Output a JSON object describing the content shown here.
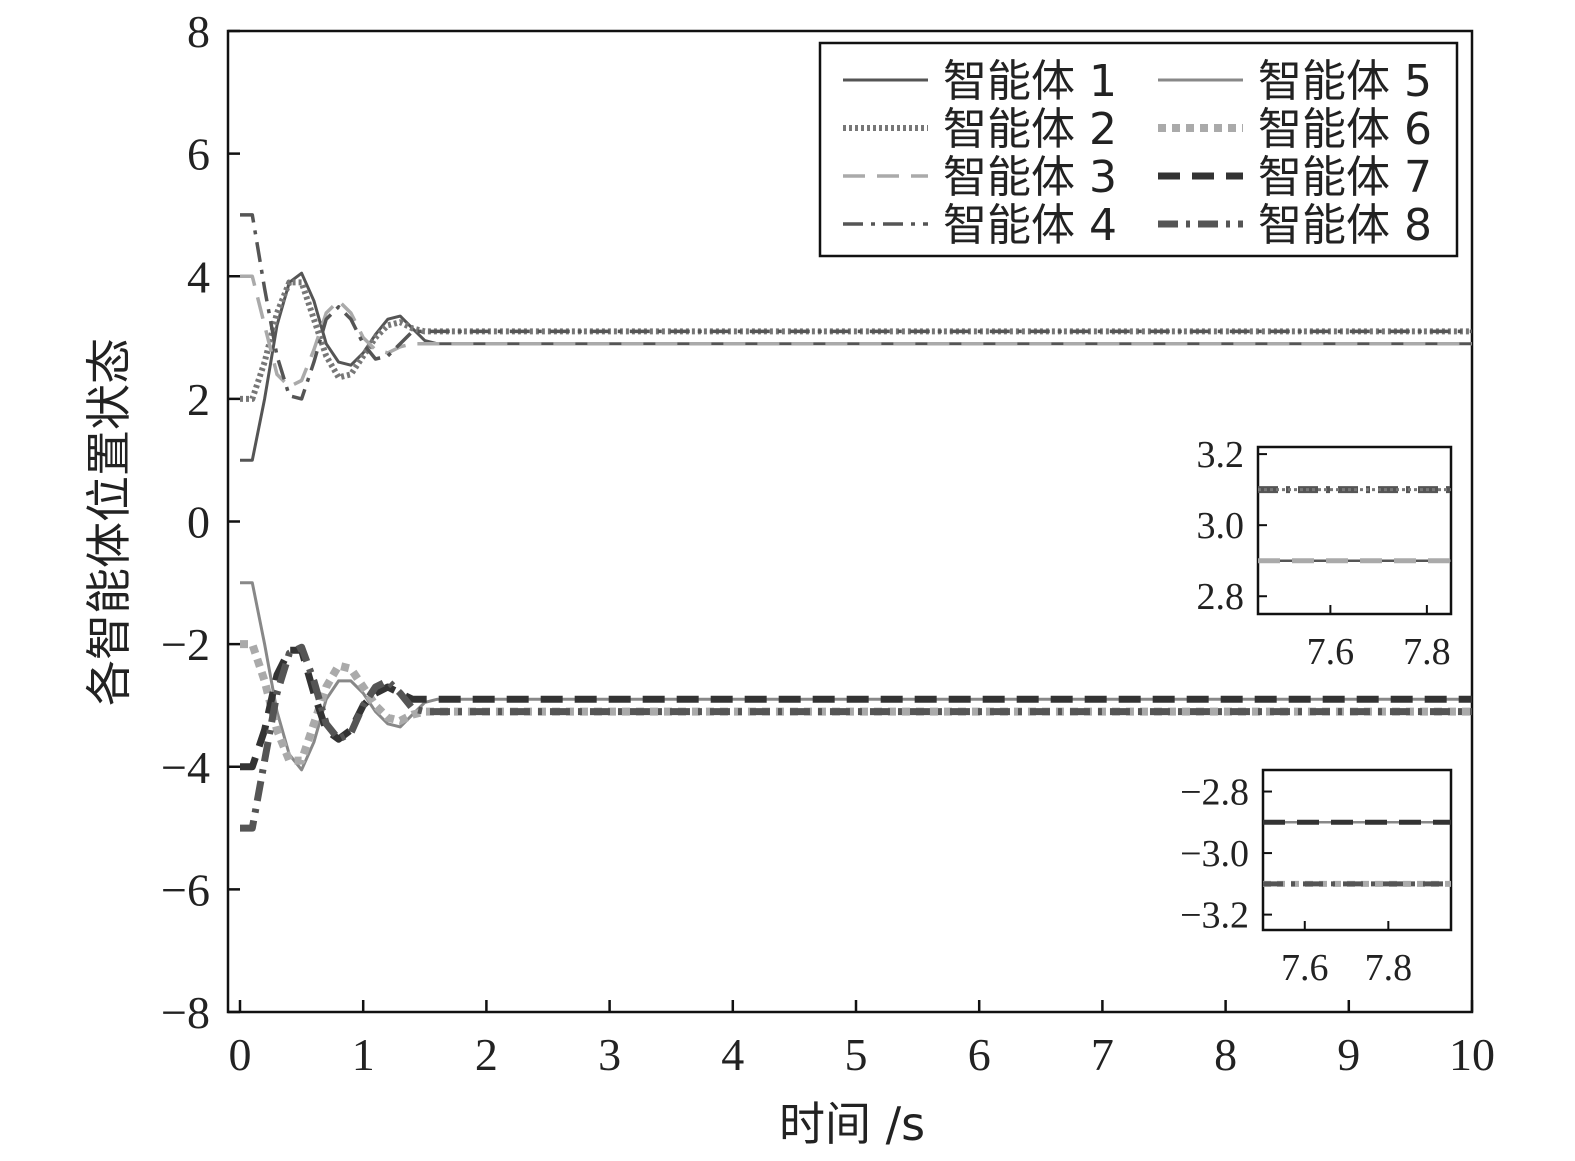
{
  "chart_data": {
    "type": "line",
    "title": "",
    "xlabel": "时间 /s",
    "ylabel": "各智能体位置状态",
    "xlim": [
      0,
      10
    ],
    "ylim": [
      -8,
      8
    ],
    "xticks": [
      "0",
      "1",
      "2",
      "3",
      "4",
      "5",
      "6",
      "7",
      "8",
      "9",
      "10"
    ],
    "yticks": [
      "−8",
      "−6",
      "−4",
      "−2",
      "0",
      "2",
      "4",
      "6",
      "8"
    ],
    "grid": false,
    "legend_position": "top-right",
    "x": [
      0,
      0.1,
      0.2,
      0.3,
      0.4,
      0.5,
      0.6,
      0.7,
      0.8,
      0.9,
      1.0,
      1.1,
      1.2,
      1.3,
      1.4,
      1.5,
      1.6,
      1.7,
      2,
      10
    ],
    "series": [
      {
        "name": "智能体 1",
        "color": "#555555",
        "dash": "",
        "width": 3,
        "values": [
          1,
          1,
          2.0,
          3.2,
          3.9,
          4.05,
          3.6,
          2.9,
          2.6,
          2.55,
          2.75,
          3.05,
          3.3,
          3.35,
          3.15,
          2.95,
          2.9,
          2.9,
          2.9,
          2.9
        ]
      },
      {
        "name": "智能体 2",
        "color": "#777777",
        "dash": "3,3",
        "width": 6,
        "values": [
          2,
          2,
          2.6,
          3.4,
          3.9,
          3.9,
          3.3,
          2.7,
          2.35,
          2.4,
          2.7,
          3.0,
          3.2,
          3.25,
          3.15,
          3.1,
          3.1,
          3.1,
          3.1,
          3.1
        ]
      },
      {
        "name": "智能体 3",
        "color": "#aaaaaa",
        "dash": "22,12",
        "width": 3.5,
        "values": [
          4,
          4,
          3.2,
          2.4,
          2.2,
          2.3,
          2.8,
          3.4,
          3.6,
          3.4,
          3.0,
          2.8,
          2.75,
          2.85,
          2.9,
          2.9,
          2.9,
          2.9,
          2.9,
          2.9
        ]
      },
      {
        "name": "智能体 4",
        "color": "#555555",
        "dash": "20,8,4,8",
        "width": 3.5,
        "values": [
          5,
          5,
          3.8,
          2.7,
          2.05,
          2.0,
          2.6,
          3.3,
          3.5,
          3.3,
          2.9,
          2.65,
          2.7,
          2.9,
          3.1,
          3.1,
          3.1,
          3.1,
          3.1,
          3.1
        ]
      },
      {
        "name": "智能体 5",
        "color": "#888888",
        "dash": "",
        "width": 3,
        "values": [
          -1,
          -1,
          -2.0,
          -3.1,
          -3.8,
          -4.05,
          -3.6,
          -2.9,
          -2.6,
          -2.6,
          -2.8,
          -3.1,
          -3.3,
          -3.35,
          -3.15,
          -2.95,
          -2.9,
          -2.9,
          -2.9,
          -2.9
        ]
      },
      {
        "name": "智能体 6",
        "color": "#aaaaaa",
        "dash": "8,6",
        "width": 8,
        "values": [
          -2,
          -2,
          -2.6,
          -3.4,
          -3.9,
          -3.9,
          -3.3,
          -2.7,
          -2.35,
          -2.4,
          -2.7,
          -3.0,
          -3.2,
          -3.25,
          -3.15,
          -3.1,
          -3.1,
          -3.1,
          -3.1,
          -3.1
        ]
      },
      {
        "name": "智能体 7",
        "color": "#333333",
        "dash": "22,12",
        "width": 7,
        "values": [
          -4,
          -4,
          -3.4,
          -2.5,
          -2.1,
          -2.1,
          -2.8,
          -3.4,
          -3.55,
          -3.4,
          -3.0,
          -2.8,
          -2.7,
          -2.8,
          -2.9,
          -2.9,
          -2.9,
          -2.9,
          -2.9,
          -2.9
        ]
      },
      {
        "name": "智能体 8",
        "color": "#555555",
        "dash": "20,8,4,8",
        "width": 7,
        "values": [
          -5,
          -5,
          -3.9,
          -2.8,
          -2.15,
          -2.05,
          -2.6,
          -3.3,
          -3.55,
          -3.45,
          -3.0,
          -2.7,
          -2.6,
          -2.8,
          -3.05,
          -3.1,
          -3.1,
          -3.1,
          -3.1,
          -3.1
        ]
      }
    ],
    "insets": [
      {
        "xlim": [
          7.45,
          7.85
        ],
        "ylim": [
          2.75,
          3.22
        ],
        "xticks": [
          "7.6",
          "7.8"
        ],
        "yticks": [
          "2.8",
          "3.0",
          "3.2"
        ],
        "upper_value": 3.1,
        "lower_value": 2.9
      },
      {
        "xlim": [
          7.5,
          7.95
        ],
        "ylim": [
          -3.25,
          -2.73
        ],
        "xticks": [
          "7.6",
          "7.8"
        ],
        "yticks": [
          "−2.8",
          "−3.0",
          "−3.2"
        ],
        "upper_value": -2.9,
        "lower_value": -3.1
      }
    ]
  }
}
